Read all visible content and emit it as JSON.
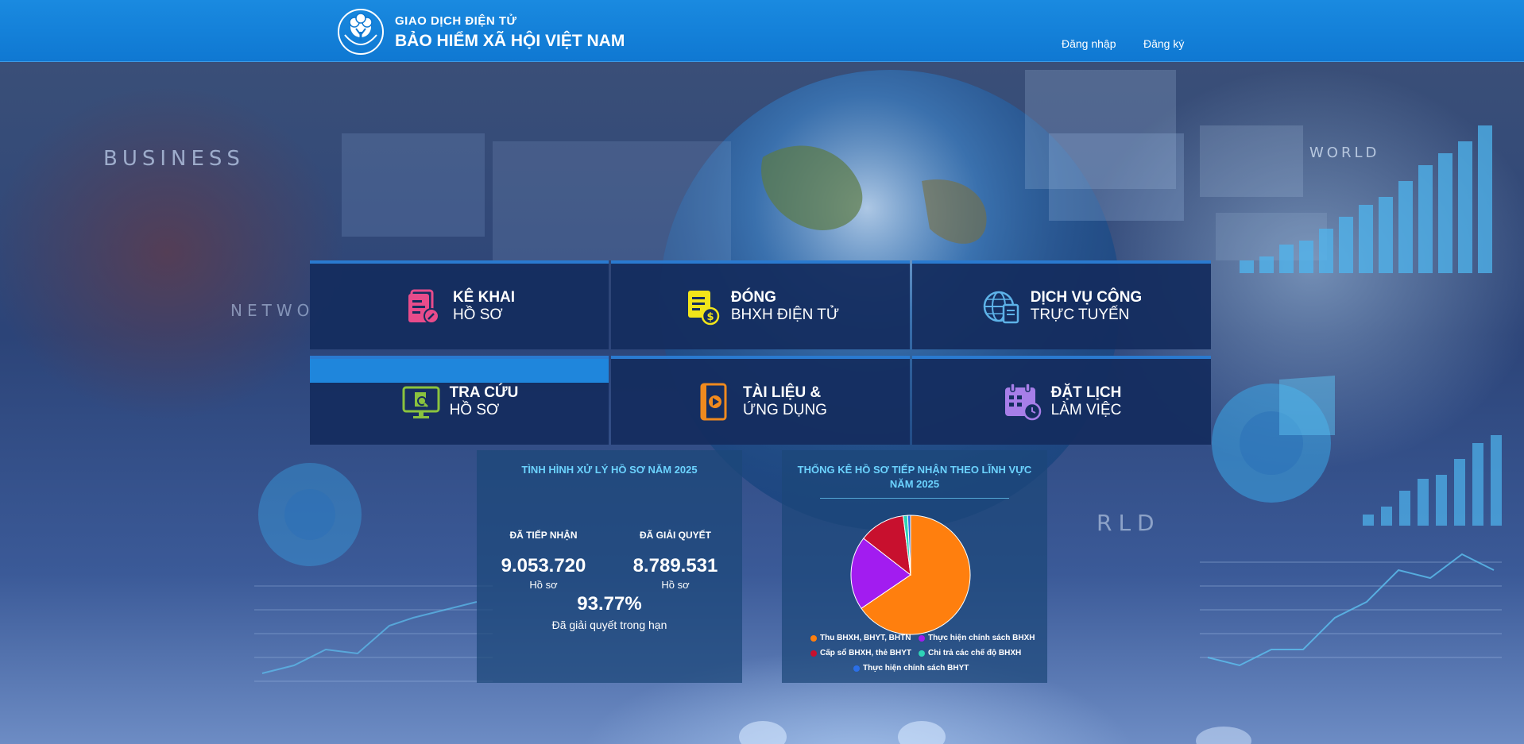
{
  "header": {
    "brand_top": "GIAO DỊCH ĐIỆN TỬ",
    "brand_main": "BẢO HIỂM XÃ HỘI VIỆT NAM",
    "login": "Đăng nhập",
    "register": "Đăng ký",
    "logo_icon": "bhxh-logo-icon"
  },
  "background_words": {
    "business": "BUSINESS",
    "network": "NETWO",
    "world_top": "WORLD",
    "world_right": "WORLD",
    "rld": "RLD"
  },
  "tiles": [
    {
      "line1": "KÊ KHAI",
      "line2": "HỒ SƠ",
      "icon": "document-edit-icon",
      "color": "#e84c8b"
    },
    {
      "line1": "ĐÓNG",
      "line2": "BHXH ĐIỆN TỬ",
      "icon": "payment-doc-icon",
      "color": "#f2e51a"
    },
    {
      "line1": "DỊCH VỤ CÔNG",
      "line2": "TRỰC TUYẾN",
      "icon": "globe-doc-icon",
      "color": "#5db2e8"
    },
    {
      "line1": "TRA CỨU",
      "line2": "HỒ SƠ",
      "icon": "monitor-search-icon",
      "color": "#8ac33e"
    },
    {
      "line1": "TÀI LIỆU &",
      "line2": "ỨNG DỤNG",
      "icon": "book-play-icon",
      "color": "#f08a1e"
    },
    {
      "line1": "ĐẶT LỊCH",
      "line2": "LÀM VIỆC",
      "icon": "calendar-clock-icon",
      "color": "#a77ee8"
    }
  ],
  "processing": {
    "title": "TÌNH HÌNH XỬ LÝ HỒ SƠ NĂM 2025",
    "received_label": "ĐÃ TIẾP NHẬN",
    "received_value": "9.053.720",
    "received_unit": "Hồ sơ",
    "resolved_label": "ĐÃ GIẢI QUYẾT",
    "resolved_value": "8.789.531",
    "resolved_unit": "Hồ sơ",
    "rate": "93.77%",
    "rate_label": "Đã giải quyết trong hạn"
  },
  "pie_panel": {
    "title_line1": "THỐNG KÊ HỒ SƠ TIẾP NHẬN THEO LĨNH VỰC",
    "title_line2": "NĂM 2025"
  },
  "chart_data": {
    "type": "pie",
    "title": "THỐNG KÊ HỒ SƠ TIẾP NHẬN THEO LĨNH VỰC NĂM 2025",
    "legend_position": "bottom",
    "series": [
      {
        "name": "Thu BHXH, BHYT, BHTN",
        "value": 65.5,
        "color": "#ff7f0e"
      },
      {
        "name": "Thực hiện chính sách BHXH",
        "value": 20.0,
        "color": "#a21cf0"
      },
      {
        "name": "Cấp sổ BHXH, thẻ BHYT",
        "value": 12.5,
        "color": "#c8102e"
      },
      {
        "name": "Chi trả các chế độ BHXH",
        "value": 1.2,
        "color": "#2ed3b7"
      },
      {
        "name": "Thực hiện chính sách BHYT",
        "value": 0.8,
        "color": "#2b6fe8"
      }
    ]
  }
}
